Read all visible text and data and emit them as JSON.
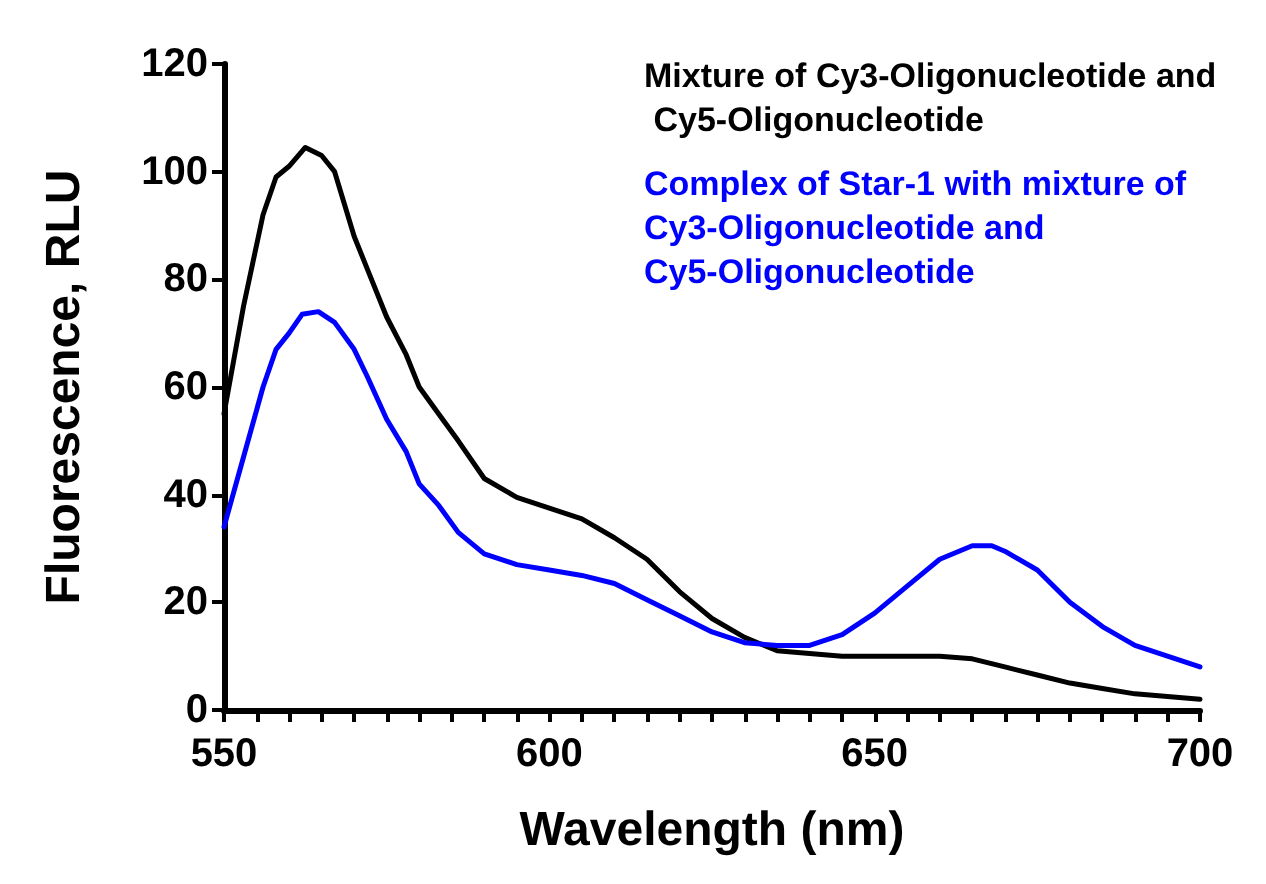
{
  "chart_data": {
    "type": "line",
    "xlabel": "Wavelength (nm)",
    "ylabel": "Fluorescence, RLU",
    "xlim": [
      550,
      700
    ],
    "xticks": [
      550,
      {
        "value": 555,
        "label": null
      },
      {
        "value": 560,
        "label": null
      },
      {
        "value": 565,
        "label": null
      },
      {
        "value": 570,
        "label": null
      },
      {
        "value": 575,
        "label": null
      },
      {
        "value": 580,
        "label": null
      },
      {
        "value": 585,
        "label": null
      },
      {
        "value": 590,
        "label": null
      },
      {
        "value": 595,
        "label": null
      },
      600,
      {
        "value": 605,
        "label": null
      },
      {
        "value": 610,
        "label": null
      },
      {
        "value": 615,
        "label": null
      },
      {
        "value": 620,
        "label": null
      },
      {
        "value": 625,
        "label": null
      },
      {
        "value": 630,
        "label": null
      },
      {
        "value": 635,
        "label": null
      },
      {
        "value": 640,
        "label": null
      },
      {
        "value": 645,
        "label": null
      },
      650,
      {
        "value": 655,
        "label": null
      },
      {
        "value": 660,
        "label": null
      },
      {
        "value": 665,
        "label": null
      },
      {
        "value": 670,
        "label": null
      },
      {
        "value": 675,
        "label": null
      },
      {
        "value": 680,
        "label": null
      },
      {
        "value": 685,
        "label": null
      },
      {
        "value": 690,
        "label": null
      },
      {
        "value": 695,
        "label": null
      },
      700
    ],
    "ylim": [
      0,
      120
    ],
    "yticks": [
      0,
      20,
      40,
      60,
      80,
      100,
      120
    ],
    "grid": false,
    "legend": "top right",
    "marker": "none",
    "line_style": "solid",
    "series": [
      {
        "name": "Mixture of Cy3-Oligonucleotide and Cy5-Oligonucleotide",
        "color": "#000000",
        "x": [
          550,
          553,
          556,
          558,
          560,
          562.5,
          565,
          567,
          570,
          572,
          575,
          578,
          580,
          583,
          586,
          590,
          595,
          600,
          605,
          610,
          615,
          620,
          625,
          630,
          635,
          640,
          645,
          650,
          655,
          660,
          665,
          670,
          675,
          680,
          685,
          690,
          695,
          700
        ],
        "values": [
          55,
          75,
          92,
          99,
          101,
          104.5,
          103,
          100,
          88,
          82,
          73,
          66,
          60,
          55,
          50,
          43,
          39.5,
          37.5,
          35.5,
          32,
          28,
          22,
          17,
          13.5,
          11,
          10.5,
          10,
          10,
          10,
          10,
          9.5,
          8,
          6.5,
          5,
          4,
          3,
          2.5,
          2
        ]
      },
      {
        "name": "Complex of Star-1 with mixture of Cy3-Oligonucleotide and Cy5-Oligonucleotide",
        "color": "#0000ff",
        "x": [
          550,
          553,
          556,
          558,
          560,
          562,
          564.5,
          567,
          570,
          572,
          575,
          578,
          580,
          583,
          586,
          590,
          595,
          600,
          605,
          610,
          615,
          620,
          625,
          630,
          635,
          640,
          645,
          650,
          655,
          660,
          665,
          668,
          670,
          675,
          680,
          685,
          690,
          695,
          700
        ],
        "values": [
          34,
          47,
          60,
          67,
          70,
          73.5,
          74,
          72,
          67,
          62,
          54,
          48,
          42,
          38,
          33,
          29,
          27,
          26,
          25,
          23.5,
          20.5,
          17.5,
          14.5,
          12.5,
          12,
          12,
          14,
          18,
          23,
          28,
          30.5,
          30.5,
          29.5,
          26,
          20,
          15.5,
          12,
          10,
          8
        ]
      }
    ]
  }
}
